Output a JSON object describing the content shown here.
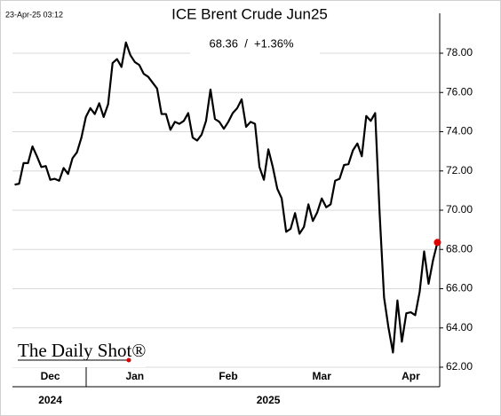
{
  "chart_data": {
    "type": "line",
    "title": "ICE Brent Crude Jun25",
    "subtitle": "68.36  /  +1.36%",
    "timestamp": "23-Apr-25 03:12",
    "logo": "The Daily Shot®",
    "years": [
      {
        "label": "2024",
        "at": 8
      },
      {
        "label": "2025",
        "at": 57
      }
    ],
    "color": "#000000",
    "marker_color": "#e00000",
    "grid": true,
    "categories": [
      null,
      null,
      null,
      null,
      null,
      null,
      null,
      null,
      "Dec",
      null,
      null,
      null,
      null,
      null,
      null,
      null,
      null,
      null,
      null,
      null,
      null,
      null,
      null,
      null,
      null,
      null,
      null,
      "Jan",
      null,
      null,
      null,
      null,
      null,
      null,
      null,
      null,
      null,
      null,
      null,
      null,
      null,
      null,
      null,
      null,
      null,
      null,
      null,
      null,
      "Feb",
      null,
      null,
      null,
      null,
      null,
      null,
      null,
      null,
      null,
      null,
      null,
      null,
      null,
      null,
      null,
      null,
      null,
      null,
      null,
      null,
      "Mar",
      null,
      null,
      null,
      null,
      null,
      null,
      null,
      null,
      null,
      null,
      null,
      null,
      null,
      null,
      null,
      null,
      null,
      null,
      null,
      "Apr",
      null,
      null,
      null,
      null,
      null,
      null
    ],
    "values": [
      71.3,
      71.35,
      72.4,
      72.4,
      73.25,
      72.75,
      72.2,
      72.25,
      71.55,
      71.6,
      71.5,
      72.15,
      71.85,
      72.65,
      72.95,
      73.7,
      74.75,
      75.2,
      74.9,
      75.45,
      74.75,
      75.4,
      77.5,
      77.7,
      77.3,
      78.55,
      77.9,
      77.55,
      77.4,
      76.95,
      76.8,
      76.5,
      76.2,
      74.9,
      74.9,
      74.1,
      74.5,
      74.4,
      74.55,
      74.95,
      73.7,
      73.55,
      73.85,
      74.55,
      76.15,
      74.65,
      74.5,
      74.15,
      74.5,
      74.95,
      75.2,
      75.65,
      74.25,
      74.5,
      74.4,
      72.2,
      71.55,
      73.1,
      72.2,
      71.1,
      70.6,
      68.9,
      69.05,
      69.85,
      68.8,
      69.15,
      70.3,
      69.45,
      69.9,
      70.6,
      70.15,
      70.3,
      71.5,
      71.6,
      72.3,
      72.35,
      73.05,
      73.4,
      72.75,
      74.8,
      74.55,
      74.95,
      69.85,
      65.55,
      64.0,
      62.75,
      65.4,
      63.3,
      64.75,
      64.8,
      64.65,
      65.85,
      67.9,
      66.25,
      67.45,
      68.36
    ],
    "ylim": [
      61,
      80
    ],
    "yticks": [
      {
        "value": 62,
        "label": "62.00"
      },
      {
        "value": 64,
        "label": "64.00"
      },
      {
        "value": 66,
        "label": "66.00"
      },
      {
        "value": 68,
        "label": "68.00"
      },
      {
        "value": 70,
        "label": "70.00"
      },
      {
        "value": 72,
        "label": "72.00"
      },
      {
        "value": 74,
        "label": "74.00"
      },
      {
        "value": 76,
        "label": "76.00"
      },
      {
        "value": 78,
        "label": "78.00"
      }
    ]
  }
}
